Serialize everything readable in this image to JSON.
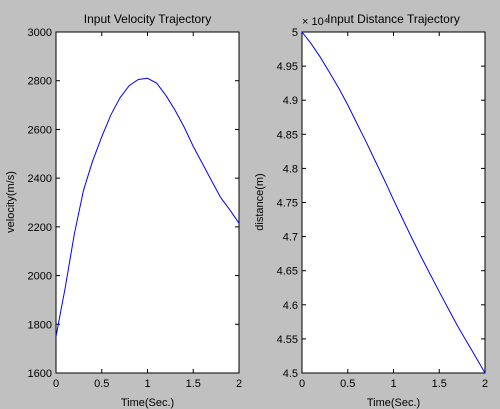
{
  "chart_data": [
    {
      "type": "line",
      "title": "Input Velocity Trajectory",
      "xlabel": "Time(Sec.)",
      "ylabel": "velocity(m/s)",
      "xlim": [
        0,
        2
      ],
      "ylim": [
        1600,
        3000
      ],
      "xticks": [
        "0",
        "0.5",
        "1",
        "1.5",
        "2"
      ],
      "yticks": [
        "1600",
        "1800",
        "2000",
        "2200",
        "2400",
        "2600",
        "2800",
        "3000"
      ],
      "line_color": "#0000ff",
      "grid": false,
      "series": [
        {
          "x": [
            0,
            0.1,
            0.2,
            0.3,
            0.4,
            0.5,
            0.6,
            0.7,
            0.8,
            0.9,
            1.0,
            1.1,
            1.2,
            1.3,
            1.4,
            1.5,
            1.6,
            1.7,
            1.8,
            1.9,
            2.0
          ],
          "values": [
            1750,
            1950,
            2170,
            2350,
            2470,
            2570,
            2660,
            2730,
            2780,
            2805,
            2810,
            2790,
            2740,
            2680,
            2610,
            2530,
            2460,
            2390,
            2320,
            2270,
            2215
          ]
        }
      ]
    },
    {
      "type": "line",
      "title": "Input Distance Trajectory",
      "xlabel": "Time(Sec.)",
      "ylabel": "distance(m)",
      "exponent_label": "× 10⁴",
      "xlim": [
        0,
        2
      ],
      "ylim": [
        4.5,
        5
      ],
      "xticks": [
        "0",
        "0.5",
        "1",
        "1.5",
        "2"
      ],
      "yticks": [
        "4.5",
        "4.55",
        "4.6",
        "4.65",
        "4.7",
        "4.75",
        "4.8",
        "4.85",
        "4.9",
        "4.95",
        "5"
      ],
      "line_color": "#0000ff",
      "grid": false,
      "series": [
        {
          "x": [
            0,
            0.1,
            0.2,
            0.3,
            0.4,
            0.5,
            0.6,
            0.7,
            0.8,
            0.9,
            1.0,
            1.1,
            1.2,
            1.3,
            1.4,
            1.5,
            1.6,
            1.7,
            1.8,
            1.9,
            2.0
          ],
          "values": [
            5.0,
            4.983,
            4.963,
            4.941,
            4.918,
            4.893,
            4.866,
            4.839,
            4.811,
            4.783,
            4.754,
            4.726,
            4.698,
            4.671,
            4.645,
            4.619,
            4.594,
            4.569,
            4.546,
            4.523,
            4.5
          ]
        }
      ]
    }
  ]
}
